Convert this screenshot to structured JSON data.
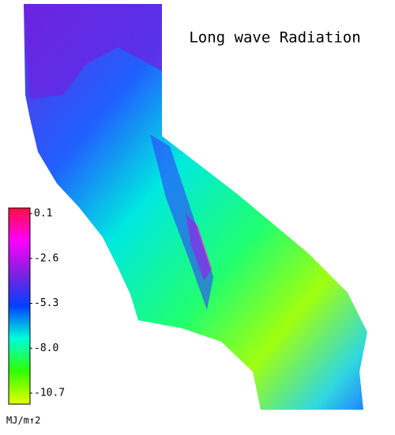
{
  "chart_data": {
    "type": "colorbar-map",
    "title": "Long wave Radiation",
    "unit_label": "MJ/m↑2",
    "clim": [
      -10.7,
      0.1
    ],
    "cticks": [
      0.1,
      -2.6,
      -5.3,
      {
        "value": -8,
        "label": "-8.0"
      },
      -10.7
    ],
    "colors": [
      "#e8ff00",
      "#30ff00",
      "#00ffd8",
      "#0040ff",
      "#8020e0",
      "#ff00ff",
      "#ff1040"
    ]
  }
}
